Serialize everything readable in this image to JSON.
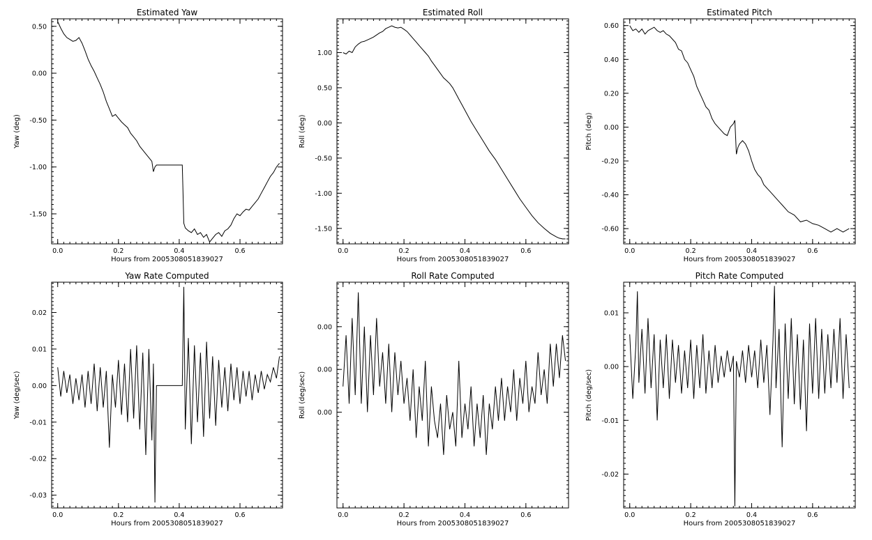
{
  "chart_data": [
    {
      "type": "line",
      "title": "Estimated Yaw",
      "xlabel": "Hours from 2005308051839027",
      "ylabel": "Yaw (deg)",
      "xlim": [
        -0.02,
        0.74
      ],
      "ylim": [
        -1.82,
        0.58
      ],
      "xticks": [
        0.0,
        0.2,
        0.4,
        0.6
      ],
      "xtick_labels": [
        "0.0",
        "0.2",
        "0.4",
        "0.6"
      ],
      "yticks": [
        0.5,
        0.0,
        -0.5,
        -1.0,
        -1.5
      ],
      "ytick_labels": [
        "0.50",
        "0.00",
        "-0.50",
        "-1.00",
        "-1.50"
      ],
      "series": [
        {
          "x": [
            0.0,
            0.01,
            0.02,
            0.03,
            0.04,
            0.05,
            0.06,
            0.07,
            0.08,
            0.09,
            0.1,
            0.11,
            0.12,
            0.13,
            0.14,
            0.15,
            0.16,
            0.17,
            0.18,
            0.19,
            0.2,
            0.21,
            0.22,
            0.23,
            0.24,
            0.25,
            0.26,
            0.27,
            0.28,
            0.29,
            0.3,
            0.31,
            0.315,
            0.32,
            0.325,
            0.41,
            0.412,
            0.415,
            0.42,
            0.43,
            0.44,
            0.45,
            0.46,
            0.47,
            0.48,
            0.49,
            0.5,
            0.51,
            0.52,
            0.53,
            0.54,
            0.55,
            0.56,
            0.57,
            0.58,
            0.59,
            0.6,
            0.61,
            0.62,
            0.63,
            0.64,
            0.65,
            0.66,
            0.67,
            0.68,
            0.69,
            0.7,
            0.71,
            0.72,
            0.73
          ],
          "y": [
            0.55,
            0.48,
            0.42,
            0.38,
            0.36,
            0.34,
            0.35,
            0.38,
            0.32,
            0.24,
            0.15,
            0.08,
            0.02,
            -0.05,
            -0.12,
            -0.2,
            -0.3,
            -0.38,
            -0.46,
            -0.44,
            -0.48,
            -0.52,
            -0.55,
            -0.58,
            -0.64,
            -0.68,
            -0.72,
            -0.78,
            -0.82,
            -0.86,
            -0.9,
            -0.94,
            -1.05,
            -1.0,
            -0.98,
            -0.98,
            -1.2,
            -1.6,
            -1.65,
            -1.68,
            -1.7,
            -1.66,
            -1.72,
            -1.7,
            -1.75,
            -1.72,
            -1.8,
            -1.76,
            -1.72,
            -1.7,
            -1.74,
            -1.68,
            -1.66,
            -1.62,
            -1.55,
            -1.5,
            -1.52,
            -1.48,
            -1.45,
            -1.46,
            -1.42,
            -1.38,
            -1.34,
            -1.28,
            -1.22,
            -1.16,
            -1.1,
            -1.06,
            -1.0,
            -0.96
          ]
        }
      ]
    },
    {
      "type": "line",
      "title": "Estimated Roll",
      "xlabel": "Hours from 2005308051839027",
      "ylabel": "Roll (deg)",
      "xlim": [
        -0.02,
        0.74
      ],
      "ylim": [
        -1.72,
        1.48
      ],
      "xticks": [
        0.0,
        0.2,
        0.4,
        0.6
      ],
      "xtick_labels": [
        "0.0",
        "0.2",
        "0.4",
        "0.6"
      ],
      "yticks": [
        1.0,
        0.5,
        0.0,
        -0.5,
        -1.0,
        -1.5
      ],
      "ytick_labels": [
        "1.00",
        "0.50",
        "0.00",
        "-0.50",
        "-1.00",
        "-1.50"
      ],
      "series": [
        {
          "x": [
            0.0,
            0.01,
            0.02,
            0.03,
            0.04,
            0.05,
            0.06,
            0.07,
            0.08,
            0.09,
            0.1,
            0.11,
            0.12,
            0.13,
            0.14,
            0.15,
            0.16,
            0.17,
            0.18,
            0.19,
            0.2,
            0.21,
            0.22,
            0.23,
            0.24,
            0.25,
            0.26,
            0.27,
            0.28,
            0.29,
            0.3,
            0.31,
            0.32,
            0.33,
            0.34,
            0.35,
            0.36,
            0.37,
            0.38,
            0.39,
            0.4,
            0.42,
            0.44,
            0.46,
            0.48,
            0.5,
            0.52,
            0.54,
            0.56,
            0.58,
            0.6,
            0.62,
            0.64,
            0.66,
            0.68,
            0.7,
            0.71,
            0.72,
            0.73
          ],
          "y": [
            1.0,
            0.98,
            1.02,
            1.0,
            1.08,
            1.12,
            1.15,
            1.16,
            1.18,
            1.2,
            1.22,
            1.25,
            1.28,
            1.3,
            1.34,
            1.36,
            1.38,
            1.36,
            1.35,
            1.36,
            1.33,
            1.3,
            1.25,
            1.2,
            1.15,
            1.1,
            1.05,
            1.0,
            0.95,
            0.88,
            0.82,
            0.76,
            0.7,
            0.64,
            0.6,
            0.56,
            0.5,
            0.42,
            0.34,
            0.26,
            0.18,
            0.02,
            -0.12,
            -0.26,
            -0.4,
            -0.52,
            -0.66,
            -0.8,
            -0.94,
            -1.08,
            -1.2,
            -1.32,
            -1.42,
            -1.5,
            -1.57,
            -1.62,
            -1.64,
            -1.65,
            -1.65
          ]
        }
      ]
    },
    {
      "type": "line",
      "title": "Estimated Pitch",
      "xlabel": "Hours from 2005308051839027",
      "ylabel": "Pitch (deg)",
      "xlim": [
        -0.02,
        0.74
      ],
      "ylim": [
        -0.69,
        0.64
      ],
      "xticks": [
        0.0,
        0.2,
        0.4,
        0.6
      ],
      "xtick_labels": [
        "0.0",
        "0.2",
        "0.4",
        "0.6"
      ],
      "yticks": [
        0.6,
        0.4,
        0.2,
        0.0,
        -0.2,
        -0.4,
        -0.6
      ],
      "ytick_labels": [
        "0.60",
        "0.40",
        "0.20",
        "0.00",
        "-0.20",
        "-0.40",
        "-0.60"
      ],
      "series": [
        {
          "x": [
            0.0,
            0.01,
            0.02,
            0.03,
            0.04,
            0.05,
            0.06,
            0.07,
            0.08,
            0.09,
            0.1,
            0.11,
            0.12,
            0.13,
            0.14,
            0.15,
            0.16,
            0.17,
            0.18,
            0.19,
            0.2,
            0.21,
            0.22,
            0.23,
            0.24,
            0.25,
            0.26,
            0.27,
            0.28,
            0.29,
            0.3,
            0.31,
            0.32,
            0.33,
            0.34,
            0.345,
            0.35,
            0.355,
            0.36,
            0.37,
            0.38,
            0.39,
            0.4,
            0.41,
            0.42,
            0.43,
            0.44,
            0.45,
            0.46,
            0.47,
            0.48,
            0.49,
            0.5,
            0.52,
            0.54,
            0.56,
            0.58,
            0.6,
            0.62,
            0.64,
            0.66,
            0.68,
            0.7,
            0.72
          ],
          "y": [
            0.6,
            0.57,
            0.58,
            0.56,
            0.58,
            0.55,
            0.57,
            0.58,
            0.59,
            0.57,
            0.56,
            0.57,
            0.55,
            0.54,
            0.52,
            0.5,
            0.46,
            0.45,
            0.4,
            0.38,
            0.34,
            0.3,
            0.24,
            0.2,
            0.16,
            0.12,
            0.1,
            0.05,
            0.02,
            0.0,
            -0.02,
            -0.04,
            -0.05,
            0.0,
            0.02,
            0.04,
            -0.16,
            -0.12,
            -0.1,
            -0.08,
            -0.1,
            -0.14,
            -0.2,
            -0.25,
            -0.28,
            -0.3,
            -0.34,
            -0.36,
            -0.38,
            -0.4,
            -0.42,
            -0.44,
            -0.46,
            -0.5,
            -0.52,
            -0.56,
            -0.55,
            -0.57,
            -0.58,
            -0.6,
            -0.62,
            -0.6,
            -0.62,
            -0.6
          ]
        }
      ]
    },
    {
      "type": "line",
      "title": "Yaw Rate Computed",
      "xlabel": "Hours from 2005308051839027",
      "ylabel": "Yaw (deg/sec)",
      "xlim": [
        -0.02,
        0.74
      ],
      "ylim": [
        -0.0335,
        0.0283
      ],
      "xticks": [
        0.0,
        0.2,
        0.4,
        0.6
      ],
      "xtick_labels": [
        "0.0",
        "0.2",
        "0.4",
        "0.6"
      ],
      "yticks": [
        0.02,
        0.01,
        0.0,
        -0.01,
        -0.02,
        -0.03
      ],
      "ytick_labels": [
        "0.02",
        "0.01",
        "0.00",
        "-0.01",
        "-0.02",
        "-0.03"
      ],
      "series": [
        {
          "x": [
            0.0,
            0.01,
            0.02,
            0.03,
            0.04,
            0.05,
            0.06,
            0.07,
            0.08,
            0.09,
            0.1,
            0.11,
            0.12,
            0.13,
            0.14,
            0.15,
            0.16,
            0.17,
            0.18,
            0.19,
            0.2,
            0.21,
            0.22,
            0.23,
            0.24,
            0.25,
            0.26,
            0.27,
            0.28,
            0.29,
            0.3,
            0.31,
            0.315,
            0.32,
            0.325,
            0.41,
            0.415,
            0.42,
            0.43,
            0.44,
            0.45,
            0.46,
            0.47,
            0.48,
            0.49,
            0.5,
            0.51,
            0.52,
            0.53,
            0.54,
            0.55,
            0.56,
            0.57,
            0.58,
            0.59,
            0.6,
            0.61,
            0.62,
            0.63,
            0.64,
            0.65,
            0.66,
            0.67,
            0.68,
            0.69,
            0.7,
            0.71,
            0.72,
            0.73
          ],
          "y": [
            0.005,
            -0.003,
            0.004,
            -0.002,
            0.003,
            -0.005,
            0.002,
            -0.004,
            0.003,
            -0.006,
            0.004,
            -0.005,
            0.006,
            -0.007,
            0.005,
            -0.006,
            0.004,
            -0.017,
            0.003,
            -0.006,
            0.007,
            -0.008,
            0.006,
            -0.01,
            0.01,
            -0.009,
            0.011,
            -0.012,
            0.009,
            -0.019,
            0.01,
            -0.015,
            0.006,
            -0.032,
            0.0,
            0.0,
            0.027,
            -0.012,
            0.013,
            -0.016,
            0.011,
            -0.01,
            0.009,
            -0.014,
            0.012,
            -0.009,
            0.008,
            -0.011,
            0.007,
            -0.006,
            0.005,
            -0.007,
            0.006,
            -0.004,
            0.005,
            -0.005,
            0.004,
            -0.003,
            0.004,
            -0.004,
            0.003,
            -0.002,
            0.004,
            -0.001,
            0.003,
            0.001,
            0.005,
            0.002,
            0.008
          ]
        }
      ]
    },
    {
      "type": "line",
      "title": "Roll Rate Computed",
      "xlabel": "Hours from 2005308051839027",
      "ylabel": "Roll (deg/sec)",
      "xlim": [
        -0.02,
        0.74
      ],
      "ylim": [
        -0.0162,
        0.0102
      ],
      "xticks": [
        0.0,
        0.2,
        0.4,
        0.6
      ],
      "xtick_labels": [
        "0.0",
        "0.2",
        "0.4",
        "0.6"
      ],
      "yticks": [
        0.005,
        0.0,
        -0.005
      ],
      "ytick_labels": [
        "0.00",
        "0.00",
        "0.00"
      ],
      "series": [
        {
          "x": [
            0.0,
            0.01,
            0.02,
            0.03,
            0.04,
            0.05,
            0.06,
            0.07,
            0.08,
            0.09,
            0.1,
            0.11,
            0.12,
            0.13,
            0.14,
            0.15,
            0.16,
            0.17,
            0.18,
            0.19,
            0.2,
            0.21,
            0.22,
            0.23,
            0.24,
            0.25,
            0.26,
            0.27,
            0.28,
            0.29,
            0.3,
            0.31,
            0.32,
            0.33,
            0.34,
            0.35,
            0.36,
            0.37,
            0.38,
            0.39,
            0.4,
            0.41,
            0.42,
            0.43,
            0.44,
            0.45,
            0.46,
            0.47,
            0.48,
            0.49,
            0.5,
            0.51,
            0.52,
            0.53,
            0.54,
            0.55,
            0.56,
            0.57,
            0.58,
            0.59,
            0.6,
            0.61,
            0.62,
            0.63,
            0.64,
            0.65,
            0.66,
            0.67,
            0.68,
            0.69,
            0.7,
            0.71,
            0.72,
            0.73
          ],
          "y": [
            -0.002,
            0.004,
            -0.004,
            0.006,
            -0.003,
            0.009,
            -0.004,
            0.005,
            -0.005,
            0.004,
            -0.003,
            0.006,
            -0.002,
            0.002,
            -0.004,
            0.003,
            -0.005,
            0.002,
            -0.003,
            0.001,
            -0.004,
            -0.001,
            -0.006,
            0.0,
            -0.008,
            -0.002,
            -0.006,
            0.001,
            -0.009,
            -0.002,
            -0.006,
            -0.008,
            -0.004,
            -0.01,
            -0.003,
            -0.007,
            -0.005,
            -0.009,
            0.001,
            -0.008,
            -0.004,
            -0.007,
            -0.002,
            -0.009,
            -0.004,
            -0.008,
            -0.003,
            -0.01,
            -0.004,
            -0.007,
            -0.002,
            -0.006,
            -0.001,
            -0.006,
            -0.002,
            -0.005,
            0.0,
            -0.006,
            -0.001,
            -0.004,
            0.001,
            -0.005,
            -0.002,
            -0.004,
            0.002,
            -0.003,
            0.0,
            -0.004,
            0.003,
            -0.002,
            0.003,
            -0.001,
            0.004,
            0.001
          ]
        }
      ]
    },
    {
      "type": "line",
      "title": "Pitch Rate Computed",
      "xlabel": "Hours from 2005308051839027",
      "ylabel": "Pitch (deg/sec)",
      "xlim": [
        -0.02,
        0.74
      ],
      "ylim": [
        -0.0263,
        0.0157
      ],
      "xticks": [
        0.0,
        0.2,
        0.4,
        0.6
      ],
      "xtick_labels": [
        "0.0",
        "0.2",
        "0.4",
        "0.6"
      ],
      "yticks": [
        0.01,
        0.0,
        -0.01,
        -0.02
      ],
      "ytick_labels": [
        "0.01",
        "0.00",
        "-0.01",
        "-0.02"
      ],
      "series": [
        {
          "x": [
            0.0,
            0.01,
            0.02,
            0.025,
            0.03,
            0.04,
            0.05,
            0.06,
            0.07,
            0.08,
            0.09,
            0.1,
            0.11,
            0.12,
            0.13,
            0.14,
            0.15,
            0.16,
            0.17,
            0.18,
            0.19,
            0.2,
            0.21,
            0.22,
            0.23,
            0.24,
            0.25,
            0.26,
            0.27,
            0.28,
            0.29,
            0.3,
            0.31,
            0.32,
            0.33,
            0.34,
            0.345,
            0.35,
            0.36,
            0.37,
            0.38,
            0.39,
            0.4,
            0.41,
            0.42,
            0.43,
            0.44,
            0.45,
            0.46,
            0.47,
            0.475,
            0.48,
            0.49,
            0.5,
            0.51,
            0.52,
            0.53,
            0.54,
            0.55,
            0.56,
            0.57,
            0.58,
            0.59,
            0.6,
            0.61,
            0.62,
            0.63,
            0.64,
            0.65,
            0.66,
            0.67,
            0.68,
            0.69,
            0.7,
            0.71,
            0.72
          ],
          "y": [
            0.006,
            -0.006,
            0.004,
            0.014,
            -0.003,
            0.007,
            -0.005,
            0.009,
            -0.004,
            0.006,
            -0.01,
            0.005,
            -0.004,
            0.006,
            -0.006,
            0.005,
            -0.003,
            0.004,
            -0.005,
            0.003,
            -0.004,
            0.005,
            -0.006,
            0.004,
            -0.004,
            0.006,
            -0.005,
            0.003,
            -0.004,
            0.004,
            -0.003,
            0.002,
            -0.002,
            0.003,
            -0.001,
            0.002,
            -0.026,
            0.001,
            -0.002,
            0.003,
            -0.003,
            0.004,
            -0.002,
            0.003,
            -0.004,
            0.005,
            -0.003,
            0.004,
            -0.009,
            0.005,
            0.015,
            -0.004,
            0.007,
            -0.015,
            0.008,
            -0.006,
            0.009,
            -0.007,
            0.006,
            -0.008,
            0.005,
            -0.012,
            0.008,
            -0.005,
            0.009,
            -0.006,
            0.007,
            -0.005,
            0.006,
            -0.004,
            0.007,
            -0.003,
            0.009,
            -0.006,
            0.006,
            -0.004
          ]
        }
      ]
    }
  ]
}
